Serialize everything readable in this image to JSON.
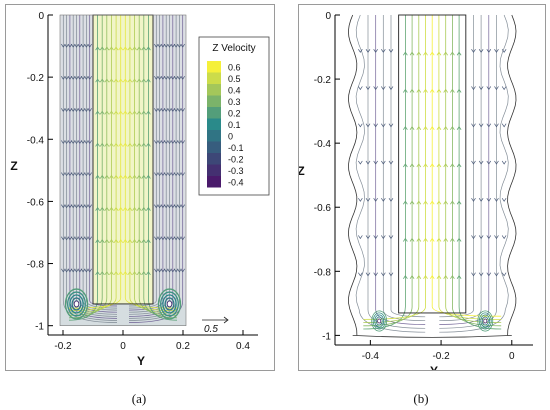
{
  "captions": [
    "(a)",
    "(b)"
  ],
  "colors": {
    "low": "#4a1a6b",
    "mid": "#2a8a8a",
    "high": "#f5f03a",
    "streamline_gray": "#6f7a86",
    "axis": "#000000"
  },
  "chart_data": [
    {
      "type": "streamline",
      "panel": "a",
      "xlabel": "Y",
      "ylabel": "Z",
      "xlim": [
        -0.25,
        0.45
      ],
      "ylim": [
        -1.03,
        0.0
      ],
      "x_ticks": [
        "-0.2",
        "0",
        "0.2",
        "0.4"
      ],
      "y_ticks": [
        "0",
        "-0.2",
        "-0.4",
        "-0.6",
        "-0.8",
        "-1"
      ],
      "x_tick_values": [
        -0.2,
        0,
        0.2,
        0.4
      ],
      "y_tick_values": [
        0,
        -0.2,
        -0.4,
        -0.6,
        -0.8,
        -1
      ],
      "legend": {
        "title": "Z Velocity",
        "placement": "top-right",
        "levels": [
          "0.6",
          "0.5",
          "0.4",
          "0.3",
          "0.2",
          "0.1",
          "0",
          "-0.1",
          "-0.2",
          "-0.3",
          "-0.4"
        ],
        "level_values": [
          0.6,
          0.5,
          0.4,
          0.3,
          0.2,
          0.1,
          0,
          -0.1,
          -0.2,
          -0.3,
          -0.4
        ]
      },
      "reference_vector_label": "0.5",
      "regions": {
        "domain_y": [
          -0.21,
          0.21
        ],
        "inner_tube_y": [
          -0.1,
          0.1
        ],
        "inner_tube_bottom_z": -0.93,
        "bottom_z": -1.0
      },
      "vortex_centers": [
        {
          "y": -0.155,
          "z": -0.93
        },
        {
          "y": 0.155,
          "z": -0.93
        }
      ]
    },
    {
      "type": "streamline",
      "panel": "b",
      "xlabel": "Y",
      "ylabel": "Z",
      "xlim": [
        -0.5,
        0.06
      ],
      "ylim": [
        -1.03,
        0.0
      ],
      "x_ticks": [
        "-0.4",
        "-0.2",
        "0"
      ],
      "y_ticks": [
        "0",
        "-0.2",
        "-0.4",
        "-0.6",
        "-0.8",
        "-1"
      ],
      "x_tick_values": [
        -0.4,
        -0.2,
        0
      ],
      "y_tick_values": [
        0,
        -0.2,
        -0.4,
        -0.6,
        -0.8,
        -1
      ],
      "regions": {
        "domain_y": [
          -0.45,
          0.0
        ],
        "inner_tube_y": [
          -0.32,
          -0.13
        ],
        "inner_tube_bottom_z": -0.93,
        "bottom_z": -1.0
      },
      "vortex_centers": [
        {
          "y": -0.375,
          "z": -0.955
        },
        {
          "y": -0.075,
          "z": -0.955
        }
      ]
    }
  ]
}
